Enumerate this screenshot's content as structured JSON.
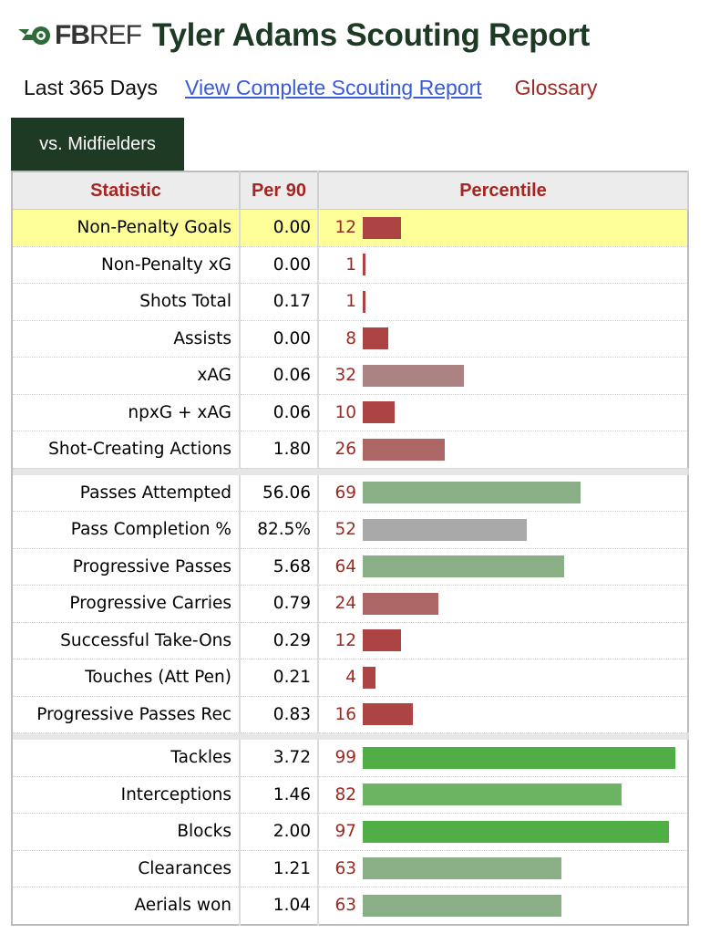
{
  "header": {
    "logo_bold": "FB",
    "logo_light": "REF",
    "title": "Tyler Adams Scouting Report"
  },
  "links": {
    "period": "Last 365 Days",
    "full_report": "View Complete Scouting Report",
    "glossary": "Glossary"
  },
  "tab": {
    "label": "vs. Midfielders"
  },
  "table": {
    "headers": [
      "Statistic",
      "Per 90",
      "Percentile"
    ],
    "groups": [
      [
        {
          "stat": "Non-Penalty Goals",
          "per90": "0.00",
          "pct": 12,
          "highlight": true
        },
        {
          "stat": "Non-Penalty xG",
          "per90": "0.00",
          "pct": 1
        },
        {
          "stat": "Shots Total",
          "per90": "0.17",
          "pct": 1
        },
        {
          "stat": "Assists",
          "per90": "0.00",
          "pct": 8
        },
        {
          "stat": "xAG",
          "per90": "0.06",
          "pct": 32
        },
        {
          "stat": "npxG + xAG",
          "per90": "0.06",
          "pct": 10
        },
        {
          "stat": "Shot-Creating Actions",
          "per90": "1.80",
          "pct": 26
        }
      ],
      [
        {
          "stat": "Passes Attempted",
          "per90": "56.06",
          "pct": 69
        },
        {
          "stat": "Pass Completion %",
          "per90": "82.5%",
          "pct": 52
        },
        {
          "stat": "Progressive Passes",
          "per90": "5.68",
          "pct": 64
        },
        {
          "stat": "Progressive Carries",
          "per90": "0.79",
          "pct": 24
        },
        {
          "stat": "Successful Take-Ons",
          "per90": "0.29",
          "pct": 12
        },
        {
          "stat": "Touches (Att Pen)",
          "per90": "0.21",
          "pct": 4
        },
        {
          "stat": "Progressive Passes Rec",
          "per90": "0.83",
          "pct": 16
        }
      ],
      [
        {
          "stat": "Tackles",
          "per90": "3.72",
          "pct": 99
        },
        {
          "stat": "Interceptions",
          "per90": "1.46",
          "pct": 82
        },
        {
          "stat": "Blocks",
          "per90": "2.00",
          "pct": 97
        },
        {
          "stat": "Clearances",
          "per90": "1.21",
          "pct": 63
        },
        {
          "stat": "Aerials won",
          "per90": "1.04",
          "pct": 63
        }
      ]
    ]
  },
  "colors": {
    "title": "#1d3a25",
    "tab_bg": "#1e3a24",
    "header_text": "#a52522",
    "link": "#3a5bd8",
    "glossary": "#9b2a24",
    "highlight_row": "#ffff99"
  },
  "icons": {
    "logo": "fbref-ball-logo-icon"
  }
}
